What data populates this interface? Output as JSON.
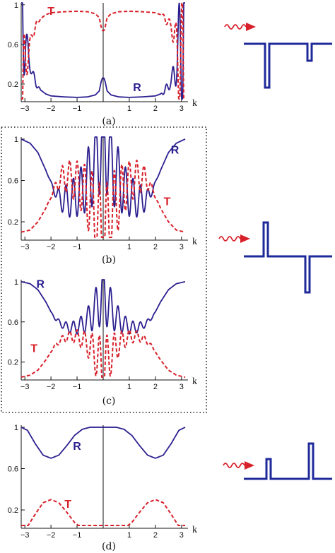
{
  "colors": {
    "R": "#2b1f8f",
    "T": "#d8202a",
    "axis": "#111111",
    "barrier": "#1f2a9a",
    "arrow": "#d8202a"
  },
  "dotted_box": true,
  "chart_data": [
    {
      "id": "a",
      "type": "line",
      "caption": "(a)",
      "xlabel": "k",
      "xlim": [
        -3.14,
        3.14
      ],
      "ylim": [
        0.05,
        1.02
      ],
      "xticks": [
        -3,
        -2,
        -1,
        1,
        2,
        3
      ],
      "yticks": [
        0.2,
        0.6,
        1
      ],
      "xtick_labels": [
        "−3",
        "−2",
        "−1",
        "1",
        "2",
        "3"
      ],
      "ytick_labels": [
        "0.2",
        "0.6",
        "1"
      ],
      "center_line": true,
      "series": [
        {
          "name": "R",
          "style": "solid",
          "x": [
            -3.14,
            -3.05,
            -2.95,
            -2.8,
            -2.6,
            -2.4,
            -2.2,
            -2,
            -1.5,
            -1,
            -0.6,
            -0.3,
            -0.15,
            -0.08,
            -0.03,
            0,
            0.03,
            0.08,
            0.15,
            0.3,
            0.6,
            1,
            1.5,
            2,
            2.2,
            2.4,
            2.6,
            2.8,
            2.95,
            3.05,
            3.14
          ],
          "y": [
            1,
            0.85,
            0.6,
            0.38,
            0.22,
            0.14,
            0.1,
            0.08,
            0.07,
            0.065,
            0.07,
            0.09,
            0.13,
            0.22,
            0.26,
            0.26,
            0.26,
            0.22,
            0.13,
            0.09,
            0.07,
            0.065,
            0.07,
            0.08,
            0.1,
            0.14,
            0.22,
            0.38,
            0.6,
            0.85,
            1
          ],
          "envelope": [
            0.95,
            0.6,
            0.2,
            0.05,
            0.05,
            0.0,
            0.0,
            0.0,
            0.0,
            0.0,
            0.0,
            0.0,
            0.0,
            0.0,
            0.0,
            0.0,
            0.0,
            0.0,
            0.0,
            0.0,
            0.0,
            0.0,
            0.0,
            0.0,
            0.0,
            0.05,
            0.05,
            0.2,
            0.6,
            0.95,
            0.95
          ],
          "wiggle_freq": 26,
          "label": "R",
          "label_at": [
            1.3,
            0.13
          ]
        },
        {
          "name": "T",
          "style": "dashed",
          "x": [
            -3.14,
            -3.05,
            -2.95,
            -2.8,
            -2.6,
            -2.4,
            -2.2,
            -2,
            -1.5,
            -1,
            -0.6,
            -0.3,
            -0.15,
            -0.08,
            -0.03,
            0,
            0.03,
            0.08,
            0.15,
            0.3,
            0.6,
            1,
            1.5,
            2,
            2.2,
            2.4,
            2.6,
            2.8,
            2.95,
            3.05,
            3.14
          ],
          "y": [
            0,
            0.15,
            0.4,
            0.62,
            0.78,
            0.86,
            0.9,
            0.92,
            0.93,
            0.935,
            0.93,
            0.91,
            0.87,
            0.78,
            0.74,
            0.74,
            0.74,
            0.78,
            0.87,
            0.91,
            0.93,
            0.935,
            0.93,
            0.92,
            0.9,
            0.86,
            0.78,
            0.62,
            0.4,
            0.15,
            0
          ],
          "envelope": [
            0.95,
            0.6,
            0.2,
            0.05,
            0.05,
            0.0,
            0.0,
            0.0,
            0.0,
            0.0,
            0.0,
            0.0,
            0.0,
            0.0,
            0.0,
            0.0,
            0.0,
            0.0,
            0.0,
            0.0,
            0.0,
            0.0,
            0.0,
            0.0,
            0.0,
            0.05,
            0.05,
            0.2,
            0.6,
            0.95,
            0.95
          ],
          "wiggle_freq": 26,
          "label": "T",
          "label_at": [
            -2.0,
            0.9
          ]
        }
      ]
    },
    {
      "id": "b",
      "type": "line",
      "caption": "(b)",
      "xlabel": "k",
      "xlim": [
        -3.14,
        3.14
      ],
      "ylim": [
        0.05,
        1.02
      ],
      "xticks": [
        -3,
        -2,
        -1,
        1,
        2,
        3
      ],
      "yticks": [
        0.2,
        0.6,
        1
      ],
      "xtick_labels": [
        "−3",
        "−2",
        "−1",
        "1",
        "2",
        "3"
      ],
      "ytick_labels": [
        "0.2",
        "0.6",
        "1"
      ],
      "center_line": true,
      "series": [
        {
          "name": "R",
          "style": "solid",
          "x": [
            -3.14,
            -2.8,
            -2.5,
            -2.2,
            -2,
            -1.8,
            -1.5,
            -1.2,
            -0.9,
            -0.6,
            -0.3,
            -0.15,
            0,
            0.15,
            0.3,
            0.6,
            0.9,
            1.2,
            1.5,
            1.8,
            2,
            2.2,
            2.5,
            2.8,
            3.14
          ],
          "y": [
            1,
            0.96,
            0.87,
            0.7,
            0.58,
            0.46,
            0.4,
            0.42,
            0.48,
            0.6,
            0.76,
            0.9,
            1,
            0.9,
            0.76,
            0.6,
            0.48,
            0.42,
            0.4,
            0.46,
            0.58,
            0.7,
            0.87,
            0.96,
            1
          ],
          "envelope": [
            0.0,
            0.0,
            0.0,
            0.0,
            0.01,
            0.05,
            0.14,
            0.18,
            0.22,
            0.3,
            0.38,
            0.44,
            0.46,
            0.44,
            0.38,
            0.3,
            0.22,
            0.18,
            0.14,
            0.05,
            0.01,
            0.0,
            0.0,
            0.0,
            0.0
          ],
          "wiggle_freq": 22,
          "label": "R",
          "label_at": [
            2.75,
            0.86
          ]
        },
        {
          "name": "T",
          "style": "dashed",
          "x": [
            -3.14,
            -2.8,
            -2.5,
            -2.2,
            -2,
            -1.8,
            -1.5,
            -1.2,
            -0.9,
            -0.6,
            -0.3,
            -0.15,
            0,
            0.15,
            0.3,
            0.6,
            0.9,
            1.2,
            1.5,
            1.8,
            2,
            2.2,
            2.5,
            2.8,
            3.14
          ],
          "y": [
            0.1,
            0.12,
            0.2,
            0.33,
            0.44,
            0.56,
            0.64,
            0.62,
            0.56,
            0.44,
            0.28,
            0.14,
            0.05,
            0.14,
            0.28,
            0.44,
            0.56,
            0.62,
            0.64,
            0.56,
            0.44,
            0.33,
            0.2,
            0.12,
            0.1
          ],
          "envelope": [
            0.0,
            0.0,
            0.0,
            0.0,
            0.01,
            0.05,
            0.14,
            0.18,
            0.22,
            0.3,
            0.38,
            0.44,
            0.46,
            0.44,
            0.38,
            0.3,
            0.22,
            0.18,
            0.14,
            0.05,
            0.01,
            0.0,
            0.0,
            0.0,
            0.0
          ],
          "wiggle_freq": 22,
          "label": "T",
          "label_at": [
            2.45,
            0.36
          ]
        }
      ]
    },
    {
      "id": "c",
      "type": "line",
      "caption": "(c)",
      "xlabel": "k",
      "xlim": [
        -3.14,
        3.14
      ],
      "ylim": [
        0.05,
        1.02
      ],
      "xticks": [
        -3,
        -2,
        -1,
        1,
        2,
        3
      ],
      "yticks": [
        0.2,
        0.6,
        1
      ],
      "xtick_labels": [
        "−3",
        "−2",
        "−1",
        "1",
        "2",
        "3"
      ],
      "ytick_labels": [
        "0.2",
        "0.6",
        "1"
      ],
      "center_line": true,
      "series": [
        {
          "name": "R",
          "style": "solid",
          "x": [
            -3.14,
            -2.8,
            -2.5,
            -2.2,
            -2,
            -1.8,
            -1.5,
            -1.2,
            -0.9,
            -0.6,
            -0.3,
            -0.15,
            0,
            0.15,
            0.3,
            0.6,
            0.9,
            1.2,
            1.5,
            1.8,
            2,
            2.2,
            2.5,
            2.8,
            3.14
          ],
          "y": [
            1,
            0.98,
            0.92,
            0.8,
            0.7,
            0.62,
            0.56,
            0.54,
            0.56,
            0.62,
            0.72,
            0.82,
            0.88,
            0.82,
            0.72,
            0.62,
            0.56,
            0.54,
            0.56,
            0.62,
            0.7,
            0.8,
            0.92,
            0.98,
            1
          ],
          "envelope": [
            0.0,
            0.0,
            0.0,
            0.0,
            0.0,
            0.02,
            0.04,
            0.06,
            0.08,
            0.12,
            0.2,
            0.27,
            0.3,
            0.27,
            0.2,
            0.12,
            0.08,
            0.06,
            0.04,
            0.02,
            0.0,
            0.0,
            0.0,
            0.0,
            0.0
          ],
          "wiggle_freq": 22,
          "label": "R",
          "label_at": [
            -2.4,
            0.94
          ]
        },
        {
          "name": "T",
          "style": "dashed",
          "x": [
            -3.14,
            -2.8,
            -2.5,
            -2.2,
            -2,
            -1.8,
            -1.5,
            -1.2,
            -0.9,
            -0.6,
            -0.3,
            -0.15,
            0,
            0.15,
            0.3,
            0.6,
            0.9,
            1.2,
            1.5,
            1.8,
            2,
            2.2,
            2.5,
            2.8,
            3.14
          ],
          "y": [
            0.05,
            0.07,
            0.12,
            0.22,
            0.3,
            0.38,
            0.44,
            0.46,
            0.44,
            0.38,
            0.28,
            0.2,
            0.12,
            0.2,
            0.28,
            0.38,
            0.44,
            0.46,
            0.44,
            0.38,
            0.3,
            0.22,
            0.12,
            0.07,
            0.05
          ],
          "envelope": [
            0.0,
            0.0,
            0.0,
            0.0,
            0.0,
            0.02,
            0.04,
            0.06,
            0.08,
            0.12,
            0.2,
            0.27,
            0.3,
            0.27,
            0.2,
            0.12,
            0.08,
            0.06,
            0.04,
            0.02,
            0.0,
            0.0,
            0.0,
            0.0,
            0.0
          ],
          "wiggle_freq": 22,
          "label": "T",
          "label_at": [
            -2.65,
            0.3
          ]
        }
      ]
    },
    {
      "id": "d",
      "type": "line",
      "caption": "(d)",
      "xlabel": "k",
      "xlim": [
        -3.14,
        3.14
      ],
      "ylim": [
        0.05,
        1.02
      ],
      "xticks": [
        -3,
        -2,
        -1,
        1,
        2,
        3
      ],
      "yticks": [
        0.2,
        0.6,
        1
      ],
      "xtick_labels": [
        "−3",
        "−2",
        "−1",
        "1",
        "2",
        "3"
      ],
      "ytick_labels": [
        "0.2",
        "0.6",
        "1"
      ],
      "center_line": true,
      "series": [
        {
          "name": "R",
          "style": "solid",
          "x": [
            -3.14,
            -2.9,
            -2.6,
            -2.3,
            -2,
            -1.7,
            -1.4,
            -1.1,
            -0.8,
            -0.5,
            0,
            0.5,
            0.8,
            1.1,
            1.4,
            1.7,
            2,
            2.3,
            2.6,
            2.9,
            3.14
          ],
          "y": [
            1,
            0.97,
            0.84,
            0.73,
            0.7,
            0.73,
            0.82,
            0.92,
            0.98,
            1,
            1,
            1,
            0.98,
            0.92,
            0.82,
            0.73,
            0.7,
            0.73,
            0.84,
            0.97,
            1
          ],
          "label": "R",
          "label_at": [
            -1.0,
            0.78
          ]
        },
        {
          "name": "T",
          "style": "dashed",
          "x": [
            -3.14,
            -2.9,
            -2.6,
            -2.3,
            -2,
            -1.7,
            -1.4,
            -1.1,
            -0.8,
            -0.5,
            0,
            0.5,
            0.8,
            1.1,
            1.4,
            1.7,
            2,
            2.3,
            2.6,
            2.9,
            3.14
          ],
          "y": [
            0,
            0.04,
            0.16,
            0.27,
            0.3,
            0.27,
            0.18,
            0.08,
            0.02,
            0.002,
            0,
            0.002,
            0.02,
            0.08,
            0.18,
            0.27,
            0.3,
            0.27,
            0.16,
            0.04,
            0
          ],
          "label": "T",
          "label_at": [
            -1.35,
            0.22
          ]
        }
      ]
    }
  ]
}
